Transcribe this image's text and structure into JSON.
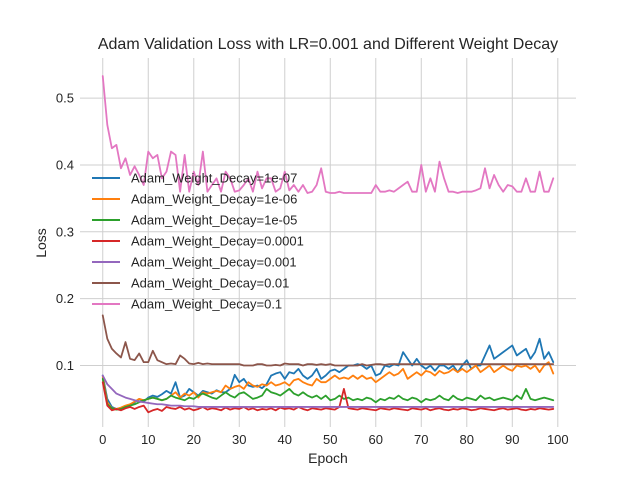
{
  "chart_data": {
    "type": "line",
    "title": "Adam Validation Loss with LR=0.001 and Different Weight Decay",
    "xlabel": "Epoch",
    "ylabel": "Loss",
    "xlim": [
      -5,
      104
    ],
    "ylim": [
      0.008,
      0.56
    ],
    "xticks": [
      0,
      10,
      20,
      30,
      40,
      50,
      60,
      70,
      80,
      90,
      100
    ],
    "yticks": [
      0.1,
      0.2,
      0.3,
      0.4,
      0.5
    ],
    "grid": true,
    "legend_position": "center-left",
    "series": [
      {
        "name": "Adam_Weight_Decay=1e-07",
        "color": "#1f77b4",
        "y": [
          0.085,
          0.05,
          0.038,
          0.035,
          0.036,
          0.037,
          0.04,
          0.045,
          0.05,
          0.046,
          0.052,
          0.055,
          0.053,
          0.057,
          0.062,
          0.058,
          0.075,
          0.052,
          0.055,
          0.065,
          0.06,
          0.055,
          0.062,
          0.06,
          0.058,
          0.063,
          0.06,
          0.06,
          0.065,
          0.086,
          0.075,
          0.08,
          0.07,
          0.068,
          0.07,
          0.066,
          0.072,
          0.085,
          0.088,
          0.09,
          0.08,
          0.09,
          0.088,
          0.095,
          0.085,
          0.08,
          0.085,
          0.095,
          0.08,
          0.085,
          0.092,
          0.094,
          0.09,
          0.095,
          0.1,
          0.1,
          0.102,
          0.1,
          0.095,
          0.1,
          0.085,
          0.088,
          0.1,
          0.098,
          0.102,
          0.1,
          0.12,
          0.11,
          0.1,
          0.11,
          0.1,
          0.095,
          0.1,
          0.092,
          0.1,
          0.1,
          0.095,
          0.1,
          0.09,
          0.1,
          0.108,
          0.095,
          0.1,
          0.1,
          0.115,
          0.13,
          0.11,
          0.115,
          0.12,
          0.125,
          0.13,
          0.115,
          0.12,
          0.125,
          0.11,
          0.12,
          0.14,
          0.11,
          0.12,
          0.105
        ]
      },
      {
        "name": "Adam_Weight_Decay=1e-06",
        "color": "#ff7f0e",
        "y": [
          0.083,
          0.045,
          0.036,
          0.035,
          0.037,
          0.04,
          0.042,
          0.046,
          0.05,
          0.048,
          0.05,
          0.052,
          0.05,
          0.048,
          0.05,
          0.055,
          0.06,
          0.052,
          0.058,
          0.055,
          0.06,
          0.052,
          0.06,
          0.058,
          0.06,
          0.062,
          0.06,
          0.07,
          0.065,
          0.068,
          0.07,
          0.065,
          0.075,
          0.07,
          0.068,
          0.072,
          0.07,
          0.075,
          0.07,
          0.072,
          0.075,
          0.07,
          0.078,
          0.08,
          0.075,
          0.072,
          0.07,
          0.08,
          0.075,
          0.075,
          0.08,
          0.085,
          0.08,
          0.082,
          0.08,
          0.085,
          0.08,
          0.085,
          0.08,
          0.082,
          0.075,
          0.08,
          0.085,
          0.09,
          0.085,
          0.088,
          0.095,
          0.08,
          0.085,
          0.09,
          0.085,
          0.092,
          0.09,
          0.085,
          0.092,
          0.088,
          0.09,
          0.095,
          0.09,
          0.095,
          0.09,
          0.095,
          0.1,
          0.09,
          0.095,
          0.1,
          0.09,
          0.095,
          0.1,
          0.095,
          0.092,
          0.1,
          0.098,
          0.1,
          0.095,
          0.1,
          0.09,
          0.1,
          0.105,
          0.088
        ]
      },
      {
        "name": "Adam_Weight_Decay=1e-05",
        "color": "#2ca02c",
        "y": [
          0.08,
          0.042,
          0.036,
          0.034,
          0.035,
          0.038,
          0.04,
          0.042,
          0.045,
          0.048,
          0.05,
          0.052,
          0.05,
          0.048,
          0.05,
          0.055,
          0.052,
          0.05,
          0.048,
          0.052,
          0.05,
          0.055,
          0.058,
          0.055,
          0.052,
          0.05,
          0.055,
          0.06,
          0.055,
          0.052,
          0.058,
          0.06,
          0.055,
          0.05,
          0.052,
          0.055,
          0.065,
          0.06,
          0.058,
          0.055,
          0.06,
          0.065,
          0.058,
          0.055,
          0.06,
          0.055,
          0.052,
          0.055,
          0.05,
          0.055,
          0.048,
          0.05,
          0.055,
          0.05,
          0.052,
          0.048,
          0.05,
          0.048,
          0.052,
          0.05,
          0.045,
          0.05,
          0.048,
          0.052,
          0.05,
          0.055,
          0.05,
          0.048,
          0.052,
          0.05,
          0.045,
          0.05,
          0.048,
          0.05,
          0.055,
          0.05,
          0.048,
          0.055,
          0.05,
          0.048,
          0.052,
          0.05,
          0.048,
          0.055,
          0.05,
          0.052,
          0.048,
          0.05,
          0.052,
          0.05,
          0.048,
          0.055,
          0.05,
          0.065,
          0.05,
          0.048,
          0.05,
          0.052,
          0.05,
          0.048
        ]
      },
      {
        "name": "Adam_Weight_Decay=0.0001",
        "color": "#d62728",
        "y": [
          0.075,
          0.04,
          0.033,
          0.035,
          0.033,
          0.036,
          0.038,
          0.035,
          0.038,
          0.04,
          0.03,
          0.033,
          0.035,
          0.032,
          0.038,
          0.036,
          0.035,
          0.038,
          0.034,
          0.036,
          0.033,
          0.035,
          0.038,
          0.034,
          0.036,
          0.035,
          0.033,
          0.037,
          0.034,
          0.036,
          0.035,
          0.038,
          0.034,
          0.036,
          0.033,
          0.035,
          0.034,
          0.036,
          0.033,
          0.037,
          0.035,
          0.036,
          0.034,
          0.038,
          0.035,
          0.033,
          0.036,
          0.035,
          0.034,
          0.036,
          0.035,
          0.034,
          0.038,
          0.065,
          0.036,
          0.035,
          0.034,
          0.036,
          0.035,
          0.034,
          0.033,
          0.036,
          0.035,
          0.034,
          0.036,
          0.035,
          0.034,
          0.033,
          0.036,
          0.035,
          0.034,
          0.036,
          0.033,
          0.035,
          0.036,
          0.034,
          0.033,
          0.035,
          0.034,
          0.036,
          0.035,
          0.033,
          0.034,
          0.036,
          0.035,
          0.034,
          0.033,
          0.035,
          0.036,
          0.034,
          0.035,
          0.036,
          0.034,
          0.033,
          0.035,
          0.034,
          0.036,
          0.035,
          0.034,
          0.035
        ]
      },
      {
        "name": "Adam_Weight_Decay=0.001",
        "color": "#9467bd",
        "y": [
          0.085,
          0.072,
          0.065,
          0.058,
          0.055,
          0.052,
          0.05,
          0.048,
          0.046,
          0.045,
          0.044,
          0.043,
          0.042,
          0.042,
          0.041,
          0.04,
          0.04,
          0.04,
          0.039,
          0.039,
          0.039,
          0.038,
          0.038,
          0.038,
          0.038,
          0.038,
          0.038,
          0.038,
          0.038,
          0.038,
          0.038,
          0.038,
          0.038,
          0.038,
          0.038,
          0.038,
          0.038,
          0.038,
          0.038,
          0.038,
          0.038,
          0.038,
          0.038,
          0.038,
          0.038,
          0.038,
          0.038,
          0.038,
          0.038,
          0.038,
          0.038,
          0.038,
          0.038,
          0.038,
          0.038,
          0.038,
          0.038,
          0.038,
          0.038,
          0.038,
          0.038,
          0.038,
          0.038,
          0.038,
          0.038,
          0.038,
          0.038,
          0.038,
          0.038,
          0.038,
          0.038,
          0.038,
          0.038,
          0.038,
          0.038,
          0.038,
          0.038,
          0.038,
          0.038,
          0.038,
          0.038,
          0.038,
          0.038,
          0.038,
          0.038,
          0.038,
          0.038,
          0.038,
          0.038,
          0.038,
          0.038,
          0.038,
          0.038,
          0.038,
          0.038,
          0.038,
          0.038,
          0.038,
          0.038,
          0.038
        ]
      },
      {
        "name": "Adam_Weight_Decay=0.01",
        "color": "#8c564b",
        "y": [
          0.175,
          0.14,
          0.125,
          0.118,
          0.112,
          0.135,
          0.11,
          0.108,
          0.118,
          0.105,
          0.105,
          0.122,
          0.108,
          0.105,
          0.102,
          0.103,
          0.102,
          0.115,
          0.11,
          0.103,
          0.102,
          0.104,
          0.102,
          0.103,
          0.102,
          0.102,
          0.102,
          0.102,
          0.102,
          0.102,
          0.102,
          0.1,
          0.1,
          0.1,
          0.102,
          0.102,
          0.1,
          0.1,
          0.101,
          0.1,
          0.103,
          0.102,
          0.102,
          0.102,
          0.1,
          0.102,
          0.102,
          0.101,
          0.102,
          0.101,
          0.102,
          0.1,
          0.1,
          0.1,
          0.1,
          0.1,
          0.1,
          0.102,
          0.1,
          0.101,
          0.102,
          0.102,
          0.101,
          0.102,
          0.102,
          0.102,
          0.102,
          0.102,
          0.102,
          0.102,
          0.102,
          0.102,
          0.102,
          0.102,
          0.102,
          0.102,
          0.102,
          0.102,
          0.102,
          0.102,
          0.102,
          0.102,
          0.102,
          0.102,
          0.102,
          0.102,
          0.102,
          0.102,
          0.102,
          0.102,
          0.102,
          0.102,
          0.102,
          0.102,
          0.102,
          0.102,
          0.102,
          0.102,
          0.102,
          0.102
        ]
      },
      {
        "name": "Adam_Weight_Decay=0.1",
        "color": "#e377c2",
        "y": [
          0.533,
          0.46,
          0.425,
          0.43,
          0.395,
          0.41,
          0.385,
          0.398,
          0.385,
          0.37,
          0.42,
          0.41,
          0.415,
          0.38,
          0.39,
          0.42,
          0.415,
          0.36,
          0.415,
          0.36,
          0.39,
          0.37,
          0.42,
          0.36,
          0.37,
          0.38,
          0.36,
          0.39,
          0.38,
          0.36,
          0.362,
          0.37,
          0.38,
          0.36,
          0.39,
          0.365,
          0.38,
          0.38,
          0.36,
          0.365,
          0.39,
          0.362,
          0.37,
          0.36,
          0.37,
          0.358,
          0.36,
          0.37,
          0.395,
          0.36,
          0.358,
          0.358,
          0.36,
          0.358,
          0.358,
          0.358,
          0.358,
          0.358,
          0.358,
          0.358,
          0.37,
          0.36,
          0.36,
          0.362,
          0.36,
          0.365,
          0.37,
          0.375,
          0.36,
          0.36,
          0.4,
          0.36,
          0.38,
          0.36,
          0.405,
          0.38,
          0.36,
          0.36,
          0.358,
          0.36,
          0.36,
          0.36,
          0.362,
          0.365,
          0.395,
          0.365,
          0.385,
          0.37,
          0.36,
          0.37,
          0.368,
          0.36,
          0.36,
          0.38,
          0.36,
          0.36,
          0.39,
          0.36,
          0.36,
          0.38
        ]
      }
    ]
  }
}
